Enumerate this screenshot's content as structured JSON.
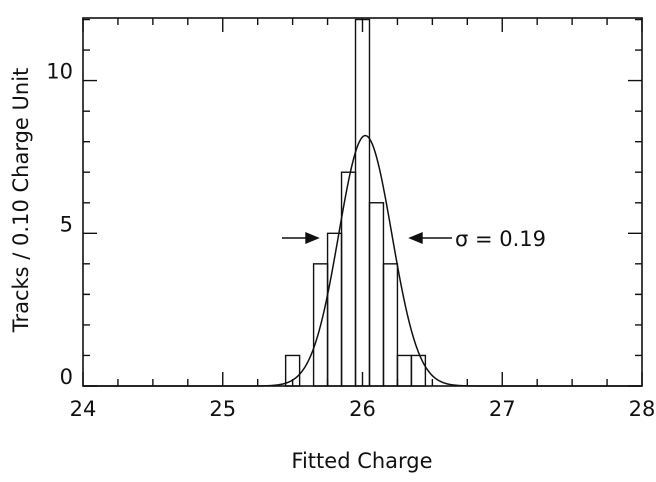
{
  "chart_data": {
    "type": "histogram",
    "xlabel": "Fitted Charge",
    "ylabel": "Tracks / 0.10 Charge Unit",
    "annotation": "σ = 0.19",
    "bins": [
      25.45,
      25.55,
      25.65,
      25.75,
      25.85,
      25.95,
      26.05,
      26.15,
      26.25,
      26.35,
      26.45
    ],
    "counts": [
      1,
      0,
      4,
      5,
      7,
      12,
      6,
      4,
      1,
      1
    ],
    "fit": {
      "mean": 26.02,
      "sigma": 0.19,
      "peak": 8.2
    },
    "color": "#111111",
    "xlim": [
      24,
      28
    ],
    "xticks": [
      24,
      25,
      26,
      27,
      28
    ],
    "xminorticks": [
      24.25,
      24.5,
      24.75,
      25.25,
      25.5,
      25.75,
      26.25,
      26.5,
      26.75,
      27.25,
      27.5,
      27.75
    ],
    "ylim": [
      0,
      12.05
    ],
    "yticks": [
      0,
      5,
      10
    ],
    "yminorticks": [
      1,
      2,
      3,
      4,
      6,
      7,
      8,
      9,
      11,
      12
    ]
  }
}
